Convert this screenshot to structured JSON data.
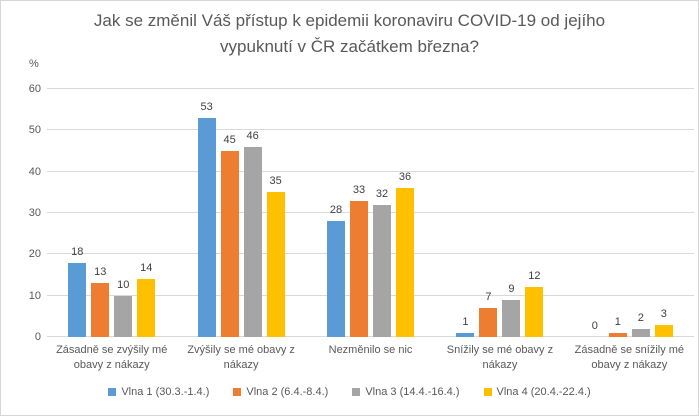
{
  "chart_data": {
    "type": "bar",
    "title": "Jak se změnil Váš přístup k epidemii koronaviru COVID-19 od jejího vypuknutí v ČR začátkem března?",
    "xlabel": "",
    "ylabel": "%",
    "ylim": [
      0,
      60
    ],
    "yticks": [
      0,
      10,
      20,
      30,
      40,
      50,
      60
    ],
    "grid": true,
    "legend_position": "bottom",
    "categories": [
      "Zásadně se zvýšily mé obavy z nákazy",
      "Zvýšily se mé obavy z nákazy",
      "Nezměnilo se nic",
      "Snížily se mé obavy z nákazy",
      "Zásadně se snížily mé obavy z nákazy"
    ],
    "series": [
      {
        "name": "Vlna 1 (30.3.-1.4.)",
        "color": "#5B9BD5",
        "values": [
          18,
          53,
          28,
          1,
          0
        ]
      },
      {
        "name": "Vlna 2 (6.4.-8.4.)",
        "color": "#ED7D31",
        "values": [
          13,
          45,
          33,
          7,
          1
        ]
      },
      {
        "name": "Vlna 3 (14.4.-16.4.)",
        "color": "#A5A5A5",
        "values": [
          10,
          46,
          32,
          9,
          2
        ]
      },
      {
        "name": "Vlna 4 (20.4.-22.4.)",
        "color": "#FFC000",
        "values": [
          14,
          35,
          36,
          12,
          3
        ]
      }
    ],
    "colors": {
      "gridline": "#D9D9D9",
      "axis_text": "#595959",
      "data_label": "#404040",
      "title_text": "#595959"
    }
  }
}
